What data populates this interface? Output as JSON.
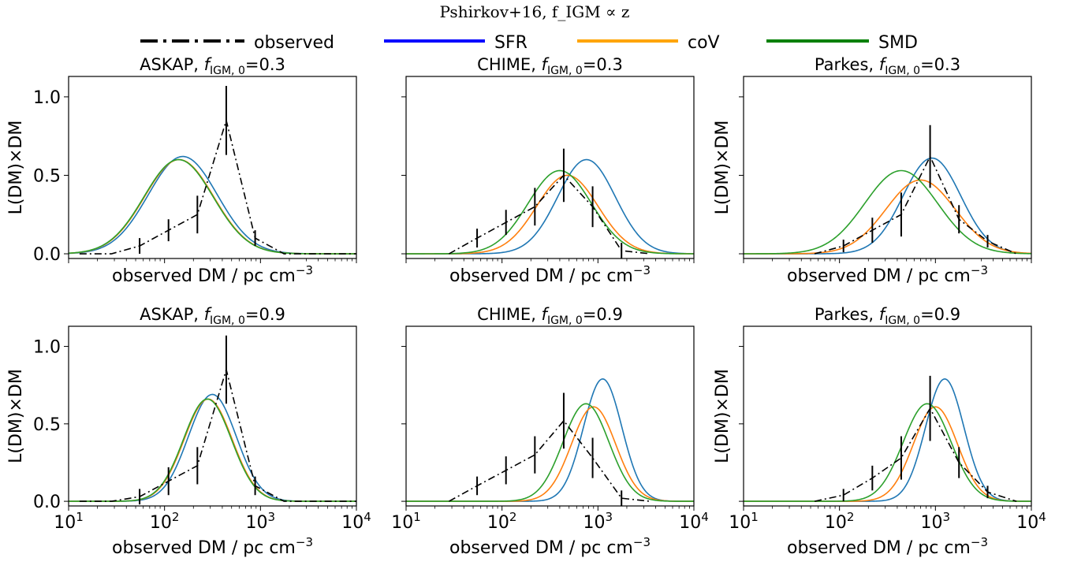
{
  "figure": {
    "suptitle": "Pshirkov+16, f_IGM ∝ z",
    "legend": {
      "placement": "top-center",
      "entries": [
        {
          "label": "observed",
          "color": "#000000",
          "style": "dashdot"
        },
        {
          "label": "SFR",
          "color": "#0000ff",
          "style": "solid"
        },
        {
          "label": "coV",
          "color": "#ffa500",
          "style": "solid"
        },
        {
          "label": "SMD",
          "color": "#008000",
          "style": "solid"
        }
      ]
    },
    "colors": {
      "SFR_curve": "#1f77b4",
      "coV_curve": "#ff7f0e",
      "SMD_curve": "#2ca02c",
      "observed": "#000000"
    }
  },
  "chart_data": [
    {
      "type": "line",
      "panel": "ASKAP-0.3",
      "title_prefix": "ASKAP, ",
      "title_var": "f",
      "title_sub": "IGM, 0",
      "title_value": "=0.3",
      "xlabel": "observed DM / pc cm",
      "xlabel_exp": "−3",
      "ylabel": "L(DM)×DM",
      "xscale": "log",
      "xlim": [
        10,
        10000
      ],
      "ylim": [
        -0.03,
        1.13
      ],
      "yticks": [
        "0.0",
        "0.5",
        "1.0"
      ],
      "xticks": [],
      "observed": {
        "x": [
          13,
          28,
          55,
          110,
          220,
          440,
          880,
          1760,
          3500,
          7000,
          14000
        ],
        "y": [
          0.0,
          0.0,
          0.05,
          0.15,
          0.25,
          0.85,
          0.1,
          0.0,
          0.0,
          0.0,
          0.0
        ],
        "err": [
          0,
          0,
          0.05,
          0.07,
          0.12,
          0.22,
          0.05,
          0,
          0,
          0,
          0
        ]
      },
      "series": [
        {
          "name": "SFR",
          "peak_x": 155,
          "peak_y": 0.62,
          "width": 0.36
        },
        {
          "name": "coV",
          "peak_x": 142,
          "peak_y": 0.6,
          "width": 0.36
        },
        {
          "name": "SMD",
          "peak_x": 140,
          "peak_y": 0.6,
          "width": 0.36
        }
      ]
    },
    {
      "type": "line",
      "panel": "CHIME-0.3",
      "title_prefix": "CHIME, ",
      "title_var": "f",
      "title_sub": "IGM, 0",
      "title_value": "=0.3",
      "xlabel": "observed DM / pc cm",
      "xlabel_exp": "−3",
      "ylabel": "",
      "xscale": "log",
      "xlim": [
        10,
        10000
      ],
      "ylim": [
        -0.03,
        1.13
      ],
      "yticks": [],
      "xticks": [],
      "observed": {
        "x": [
          28,
          55,
          110,
          220,
          440,
          880,
          1760,
          3500
        ],
        "y": [
          0.0,
          0.1,
          0.2,
          0.3,
          0.5,
          0.3,
          0.02,
          0.0
        ],
        "err": [
          0,
          0.06,
          0.08,
          0.12,
          0.17,
          0.13,
          0.05,
          0
        ]
      },
      "series": [
        {
          "name": "SFR",
          "peak_x": 760,
          "peak_y": 0.6,
          "width": 0.3
        },
        {
          "name": "coV",
          "peak_x": 480,
          "peak_y": 0.5,
          "width": 0.32
        },
        {
          "name": "SMD",
          "peak_x": 400,
          "peak_y": 0.53,
          "width": 0.33
        }
      ]
    },
    {
      "type": "line",
      "panel": "Parkes-0.3",
      "title_prefix": "Parkes, ",
      "title_var": "f",
      "title_sub": "IGM, 0",
      "title_value": "=0.3",
      "xlabel": "observed DM / pc cm",
      "xlabel_exp": "−3",
      "ylabel": "L(DM)×DM",
      "xscale": "log",
      "xlim": [
        10,
        10000
      ],
      "ylim": [
        -0.03,
        1.13
      ],
      "yticks": [],
      "xticks": [],
      "observed": {
        "x": [
          55,
          110,
          220,
          440,
          880,
          1760,
          3500,
          7000
        ],
        "y": [
          0.0,
          0.05,
          0.15,
          0.25,
          0.62,
          0.22,
          0.08,
          0.0
        ],
        "err": [
          0,
          0.04,
          0.08,
          0.14,
          0.2,
          0.09,
          0.04,
          0
        ]
      },
      "series": [
        {
          "name": "SFR",
          "peak_x": 920,
          "peak_y": 0.61,
          "width": 0.3
        },
        {
          "name": "coV",
          "peak_x": 700,
          "peak_y": 0.47,
          "width": 0.36
        },
        {
          "name": "SMD",
          "peak_x": 440,
          "peak_y": 0.53,
          "width": 0.38
        }
      ]
    },
    {
      "type": "line",
      "panel": "ASKAP-0.9",
      "title_prefix": "ASKAP, ",
      "title_var": "f",
      "title_sub": "IGM, 0",
      "title_value": "=0.9",
      "xlabel": "observed DM / pc cm",
      "xlabel_exp": "−3",
      "ylabel": "L(DM)×DM",
      "xscale": "log",
      "xlim": [
        10,
        10000
      ],
      "ylim": [
        -0.03,
        1.13
      ],
      "yticks": [
        "0.0",
        "0.5",
        "1.0"
      ],
      "xticks": [
        "10^1",
        "10^2",
        "10^3",
        "10^4"
      ],
      "observed": {
        "x": [
          13,
          28,
          55,
          110,
          220,
          440,
          880,
          1760,
          3500,
          7000,
          14000
        ],
        "y": [
          0.0,
          0.0,
          0.03,
          0.13,
          0.23,
          0.85,
          0.1,
          0.0,
          0.0,
          0.0,
          0.0
        ],
        "err": [
          0,
          0,
          0.05,
          0.09,
          0.12,
          0.22,
          0.06,
          0,
          0,
          0,
          0
        ]
      },
      "series": [
        {
          "name": "SFR",
          "peak_x": 315,
          "peak_y": 0.69,
          "width": 0.25
        },
        {
          "name": "coV",
          "peak_x": 285,
          "peak_y": 0.66,
          "width": 0.25
        },
        {
          "name": "SMD",
          "peak_x": 280,
          "peak_y": 0.66,
          "width": 0.25
        }
      ]
    },
    {
      "type": "line",
      "panel": "CHIME-0.9",
      "title_prefix": "CHIME, ",
      "title_var": "f",
      "title_sub": "IGM, 0",
      "title_value": "=0.9",
      "xlabel": "observed DM / pc cm",
      "xlabel_exp": "−3",
      "ylabel": "",
      "xscale": "log",
      "xlim": [
        10,
        10000
      ],
      "ylim": [
        -0.03,
        1.13
      ],
      "yticks": [],
      "xticks": [
        "10^1",
        "10^2",
        "10^3",
        "10^4"
      ],
      "observed": {
        "x": [
          28,
          55,
          110,
          220,
          440,
          880,
          1760,
          3500
        ],
        "y": [
          0.0,
          0.1,
          0.2,
          0.3,
          0.52,
          0.28,
          0.02,
          0.0
        ],
        "err": [
          0,
          0.06,
          0.09,
          0.12,
          0.18,
          0.13,
          0.05,
          0
        ]
      },
      "series": [
        {
          "name": "SFR",
          "peak_x": 1120,
          "peak_y": 0.79,
          "width": 0.2
        },
        {
          "name": "coV",
          "peak_x": 900,
          "peak_y": 0.61,
          "width": 0.23
        },
        {
          "name": "SMD",
          "peak_x": 750,
          "peak_y": 0.63,
          "width": 0.24
        }
      ]
    },
    {
      "type": "line",
      "panel": "Parkes-0.9",
      "title_prefix": "Parkes, ",
      "title_var": "f",
      "title_sub": "IGM, 0",
      "title_value": "=0.9",
      "xlabel": "observed DM / pc cm",
      "xlabel_exp": "−3",
      "ylabel": "L(DM)×DM",
      "xscale": "log",
      "xlim": [
        10,
        10000
      ],
      "ylim": [
        -0.03,
        1.13
      ],
      "yticks": [],
      "xticks": [
        "10^1",
        "10^2",
        "10^3",
        "10^4"
      ],
      "observed": {
        "x": [
          55,
          110,
          220,
          440,
          880,
          1760,
          3500,
          7000
        ],
        "y": [
          0.0,
          0.04,
          0.15,
          0.28,
          0.6,
          0.25,
          0.06,
          0.0
        ],
        "err": [
          0,
          0.04,
          0.08,
          0.14,
          0.21,
          0.1,
          0.04,
          0
        ]
      },
      "series": [
        {
          "name": "SFR",
          "peak_x": 1250,
          "peak_y": 0.79,
          "width": 0.2
        },
        {
          "name": "coV",
          "peak_x": 1000,
          "peak_y": 0.61,
          "width": 0.23
        },
        {
          "name": "SMD",
          "peak_x": 820,
          "peak_y": 0.63,
          "width": 0.25
        }
      ]
    }
  ]
}
